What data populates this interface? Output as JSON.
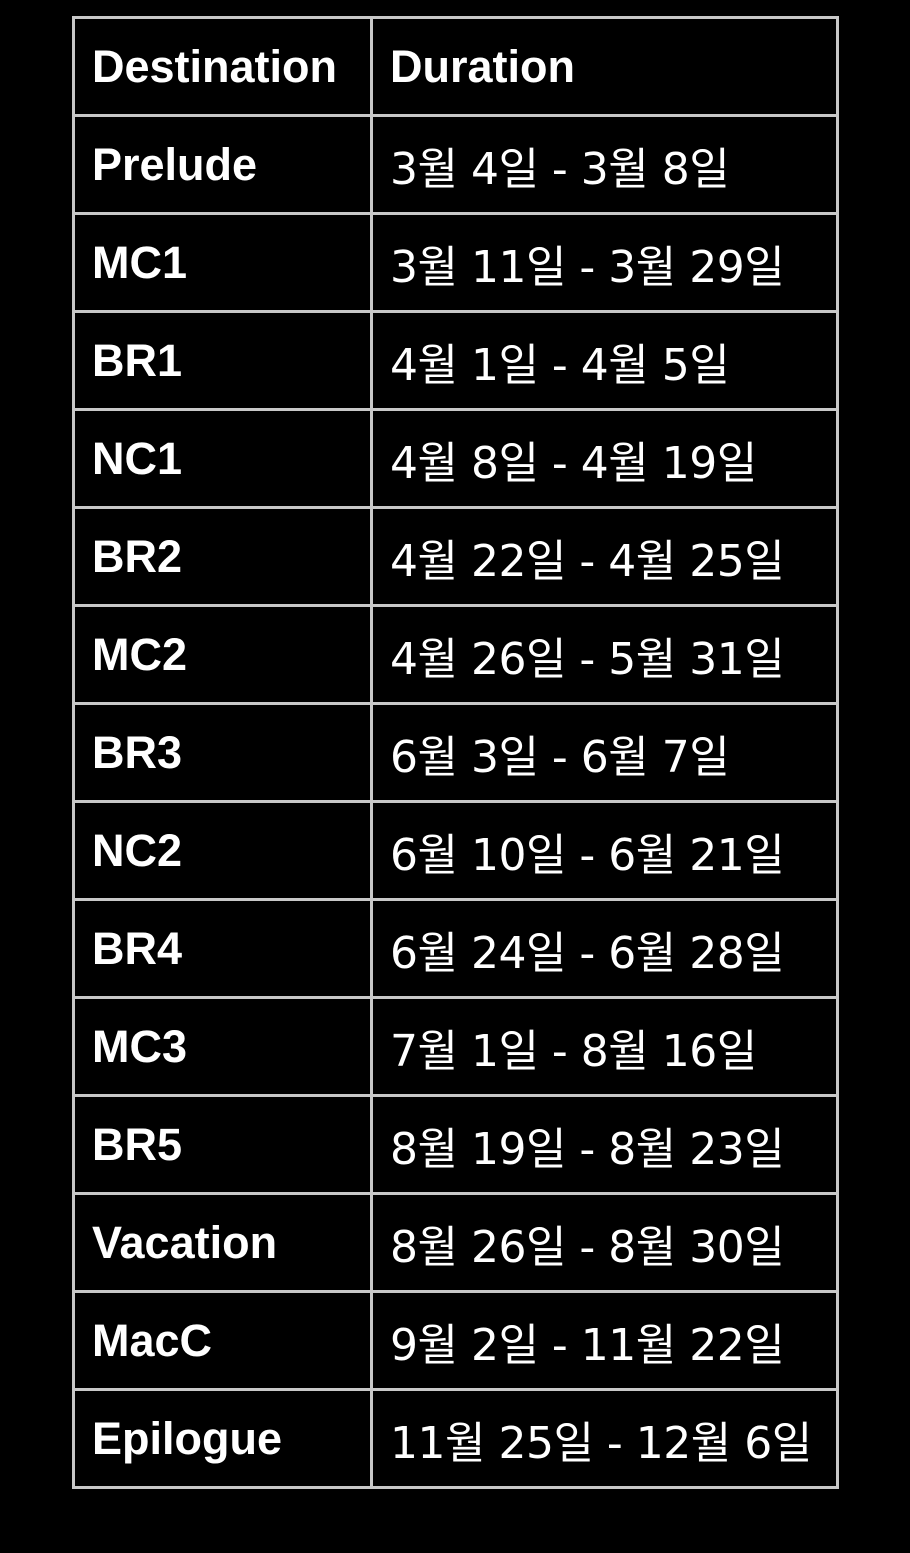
{
  "table": {
    "headers": {
      "destination": "Destination",
      "duration": "Duration"
    },
    "rows": [
      {
        "destination": "Prelude",
        "duration": "3월 4일 - 3월 8일"
      },
      {
        "destination": "MC1",
        "duration": "3월 11일 - 3월 29일"
      },
      {
        "destination": "BR1",
        "duration": "4월 1일 - 4월 5일"
      },
      {
        "destination": "NC1",
        "duration": "4월 8일 - 4월 19일"
      },
      {
        "destination": "BR2",
        "duration": "4월 22일 - 4월 25일"
      },
      {
        "destination": "MC2",
        "duration": "4월 26일 - 5월 31일"
      },
      {
        "destination": "BR3",
        "duration": "6월 3일 - 6월 7일"
      },
      {
        "destination": "NC2",
        "duration": "6월 10일 - 6월 21일"
      },
      {
        "destination": "BR4",
        "duration": "6월 24일 - 6월 28일"
      },
      {
        "destination": "MC3",
        "duration": "7월 1일 - 8월 16일"
      },
      {
        "destination": "BR5",
        "duration": "8월 19일 - 8월 23일"
      },
      {
        "destination": "Vacation",
        "duration": "8월 26일 - 8월 30일"
      },
      {
        "destination": "MacC",
        "duration": "9월 2일 - 11월 22일"
      },
      {
        "destination": "Epilogue",
        "duration": "11월 25일 - 12월 6일"
      }
    ]
  },
  "colors": {
    "background": "#000000",
    "text": "#ffffff",
    "border": "#c8c8c8"
  }
}
